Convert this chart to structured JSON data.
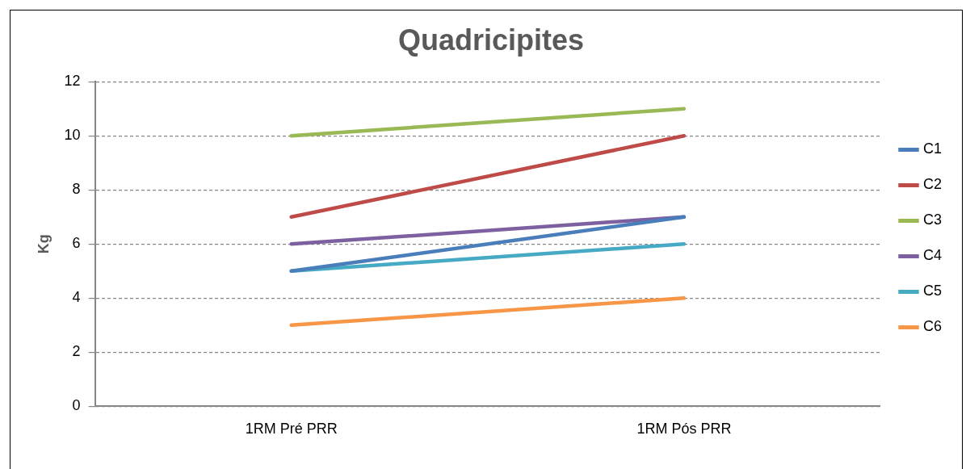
{
  "chart_data": {
    "type": "line",
    "title": "Quadricipites",
    "ylabel": "Kg",
    "categories": [
      "1RM Pré PRR",
      "1RM Pós PRR"
    ],
    "series": [
      {
        "name": "C1",
        "color": "#4a7ebb",
        "values": [
          5,
          7
        ]
      },
      {
        "name": "C2",
        "color": "#be4b48",
        "values": [
          7,
          10
        ]
      },
      {
        "name": "C3",
        "color": "#98b954",
        "values": [
          10,
          11
        ]
      },
      {
        "name": "C4",
        "color": "#7d60a0",
        "values": [
          6,
          7
        ]
      },
      {
        "name": "C5",
        "color": "#46aac5",
        "values": [
          5,
          6
        ]
      },
      {
        "name": "C6",
        "color": "#f79646",
        "values": [
          3,
          4
        ]
      }
    ],
    "ylim": [
      0,
      12
    ],
    "yticks": [
      0,
      2,
      4,
      6,
      8,
      10,
      12
    ],
    "grid": "y",
    "legend": "right",
    "marker": "none",
    "line_style": "solid"
  }
}
